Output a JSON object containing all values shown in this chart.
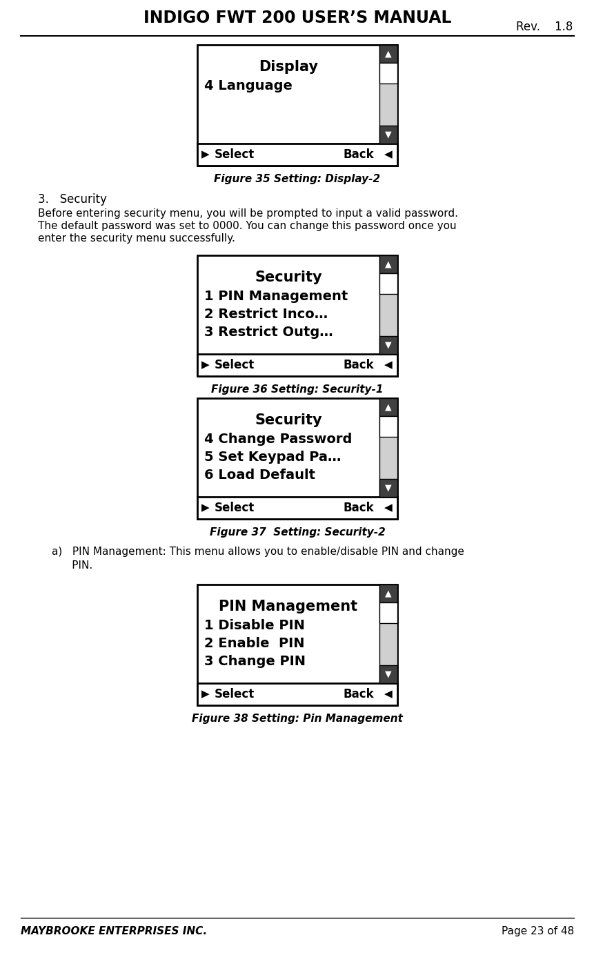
{
  "title": "INDIGO FWT 200 USER’S MANUAL",
  "rev_label": "Rev.    1.8",
  "footer_left": "MAYBROOKE ENTERPRISES INC.",
  "footer_right": "Page 23 of 48",
  "fig35_caption": "Figure 35 Setting: Display-2",
  "fig36_caption": "Figure 36 Setting: Security-1",
  "fig37_caption": "Figure 37  Setting: Security-2",
  "fig38_caption": "Figure 38 Setting: Pin Management",
  "section_header": "3.   Security",
  "section_body1": "Before entering security menu, you will be prompted to input a valid password.",
  "section_body2": "The default password was set to 0000. You can change this password once you",
  "section_body3": "enter the security menu successfully.",
  "bullet_head": "a)   PIN Management: This menu allows you to enable/disable PIN and change",
  "bullet_cont": "      PIN.",
  "box1_title": "Display",
  "box1_lines": [
    "4 Language"
  ],
  "box2_title": "Security",
  "box2_lines": [
    "1 PIN Management",
    "2 Restrict Inco…",
    "3 Restrict Outg…"
  ],
  "box3_title": "Security",
  "box3_lines": [
    "4 Change Password",
    "5 Set Keypad Pa…",
    "6 Load Default"
  ],
  "box4_title": "PIN Management",
  "box4_lines": [
    "1 Disable PIN",
    "2 Enable  PIN",
    "3 Change PIN"
  ],
  "select_label": "Select",
  "back_label": "Back",
  "bg_color": "#ffffff"
}
